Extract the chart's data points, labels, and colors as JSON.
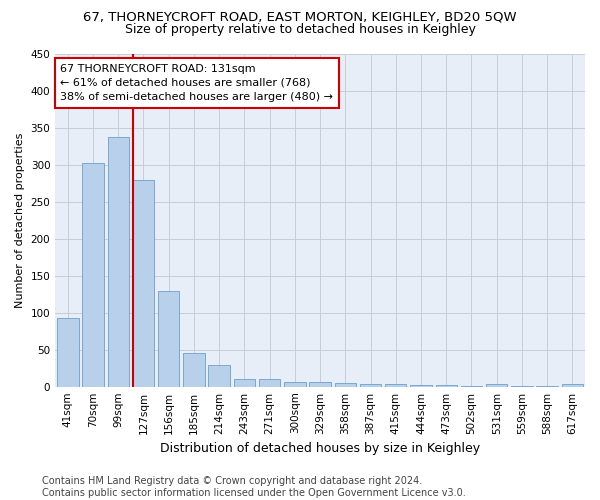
{
  "title": "67, THORNEYCROFT ROAD, EAST MORTON, KEIGHLEY, BD20 5QW",
  "subtitle": "Size of property relative to detached houses in Keighley",
  "xlabel": "Distribution of detached houses by size in Keighley",
  "ylabel": "Number of detached properties",
  "categories": [
    "41sqm",
    "70sqm",
    "99sqm",
    "127sqm",
    "156sqm",
    "185sqm",
    "214sqm",
    "243sqm",
    "271sqm",
    "300sqm",
    "329sqm",
    "358sqm",
    "387sqm",
    "415sqm",
    "444sqm",
    "473sqm",
    "502sqm",
    "531sqm",
    "559sqm",
    "588sqm",
    "617sqm"
  ],
  "values": [
    93,
    303,
    338,
    280,
    130,
    46,
    30,
    10,
    10,
    7,
    7,
    5,
    3,
    3,
    2,
    2,
    1,
    3,
    1,
    1,
    3
  ],
  "bar_color": "#b8d0ea",
  "bar_edge_color": "#6aa0cc",
  "highlight_line_color": "#cc0000",
  "annotation_line1": "67 THORNEYCROFT ROAD: 131sqm",
  "annotation_line2": "← 61% of detached houses are smaller (768)",
  "annotation_line3": "38% of semi-detached houses are larger (480) →",
  "annotation_box_color": "#ffffff",
  "annotation_box_edge": "#cc0000",
  "ylim": [
    0,
    450
  ],
  "yticks": [
    0,
    50,
    100,
    150,
    200,
    250,
    300,
    350,
    400,
    450
  ],
  "footer": "Contains HM Land Registry data © Crown copyright and database right 2024.\nContains public sector information licensed under the Open Government Licence v3.0.",
  "bg_color": "#ffffff",
  "plot_bg_color": "#e8eef8",
  "grid_color": "#c8ccd8",
  "title_fontsize": 9.5,
  "subtitle_fontsize": 9,
  "xlabel_fontsize": 9,
  "ylabel_fontsize": 8,
  "tick_fontsize": 7.5,
  "footer_fontsize": 7,
  "highlight_bar_index": 3
}
